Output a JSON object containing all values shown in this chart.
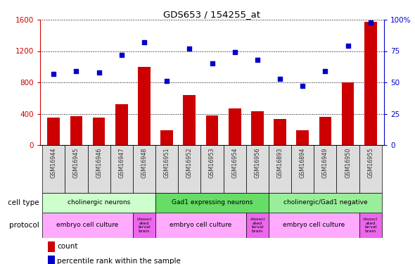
{
  "title": "GDS653 / 154255_at",
  "samples": [
    "GSM16944",
    "GSM16945",
    "GSM16946",
    "GSM16947",
    "GSM16948",
    "GSM16951",
    "GSM16952",
    "GSM16953",
    "GSM16954",
    "GSM16956",
    "GSM16893",
    "GSM16894",
    "GSM16949",
    "GSM16950",
    "GSM16955"
  ],
  "counts": [
    350,
    370,
    350,
    520,
    1000,
    190,
    640,
    380,
    470,
    430,
    330,
    190,
    360,
    800,
    1570
  ],
  "percentiles": [
    57,
    59,
    58,
    72,
    82,
    51,
    77,
    65,
    74,
    68,
    53,
    47,
    59,
    79,
    98
  ],
  "bar_color": "#cc0000",
  "dot_color": "#0000cc",
  "ylim_left": [
    0,
    1600
  ],
  "ylim_right": [
    0,
    100
  ],
  "yticks_left": [
    0,
    400,
    800,
    1200,
    1600
  ],
  "yticks_right": [
    0,
    25,
    50,
    75,
    100
  ],
  "cell_type_groups": [
    {
      "label": "cholinergic neurons",
      "start": 0,
      "end": 4,
      "color": "#ccffcc"
    },
    {
      "label": "Gad1 expressing neurons",
      "start": 5,
      "end": 9,
      "color": "#66dd66"
    },
    {
      "label": "cholinergic/Gad1 negative",
      "start": 10,
      "end": 14,
      "color": "#99ee99"
    }
  ],
  "protocol_groups": [
    {
      "label": "embryo cell culture",
      "start": 0,
      "end": 3,
      "color": "#ffaaff",
      "small": false
    },
    {
      "label": "dissoci\nated\nlarval\nbrain",
      "start": 4,
      "end": 4,
      "color": "#ee66ee",
      "small": true
    },
    {
      "label": "embryo cell culture",
      "start": 5,
      "end": 8,
      "color": "#ffaaff",
      "small": false
    },
    {
      "label": "dissoci\nated\nlarval\nbrain",
      "start": 9,
      "end": 9,
      "color": "#ee66ee",
      "small": true
    },
    {
      "label": "embryo cell culture",
      "start": 10,
      "end": 13,
      "color": "#ffaaff",
      "small": false
    },
    {
      "label": "dissoci\nated\nlarval\nbrain",
      "start": 14,
      "end": 14,
      "color": "#ee66ee",
      "small": true
    }
  ],
  "cell_type_row_label": "cell type",
  "protocol_row_label": "protocol",
  "legend_count": "count",
  "legend_percentile": "percentile rank within the sample",
  "bg_color": "#ffffff",
  "tick_color_left": "#cc0000",
  "tick_color_right": "#0000cc",
  "xlabel_color": "#444444",
  "n": 15,
  "bar_width": 0.55
}
